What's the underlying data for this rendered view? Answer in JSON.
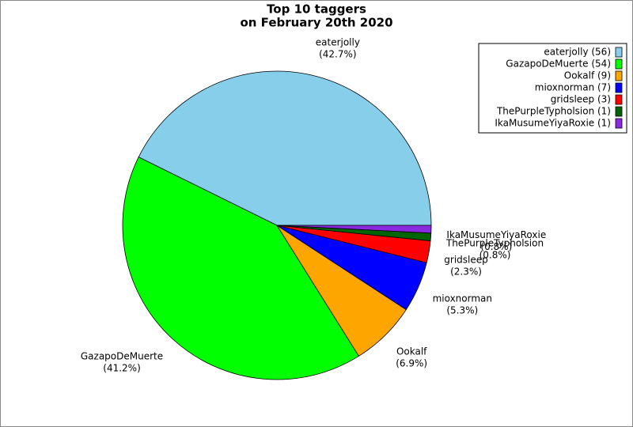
{
  "chart_data": {
    "type": "pie",
    "title": [
      "Top 10 taggers",
      "on February 20th 2020"
    ],
    "categories": [
      "eaterjolly",
      "GazapoDeMuerte",
      "Ookalf",
      "mioxnorman",
      "gridsleep",
      "ThePurpleTypholsion",
      "IkaMusumeYiyaRoxie"
    ],
    "values": [
      42.7,
      41.2,
      6.9,
      5.3,
      2.3,
      0.8,
      0.8
    ],
    "value_labels": [
      "(42.7%)",
      "(41.2%)",
      "(6.9%)",
      "(5.3%)",
      "(2.3%)",
      "(0.8%)",
      "(0.8%)"
    ],
    "legend_labels": [
      "eaterjolly (56)",
      "GazapoDeMuerte (54)",
      "Ookalf (9)",
      "mioxnorman (7)",
      "gridsleep (3)",
      "ThePurpleTypholsion (1)",
      "IkaMusumeYiyaRoxie (1)"
    ],
    "colors": [
      "#87ceeb",
      "#00ff00",
      "#ffa500",
      "#0000ff",
      "#ff0000",
      "#006400",
      "#8a2be2"
    ],
    "legend": "upper right"
  }
}
